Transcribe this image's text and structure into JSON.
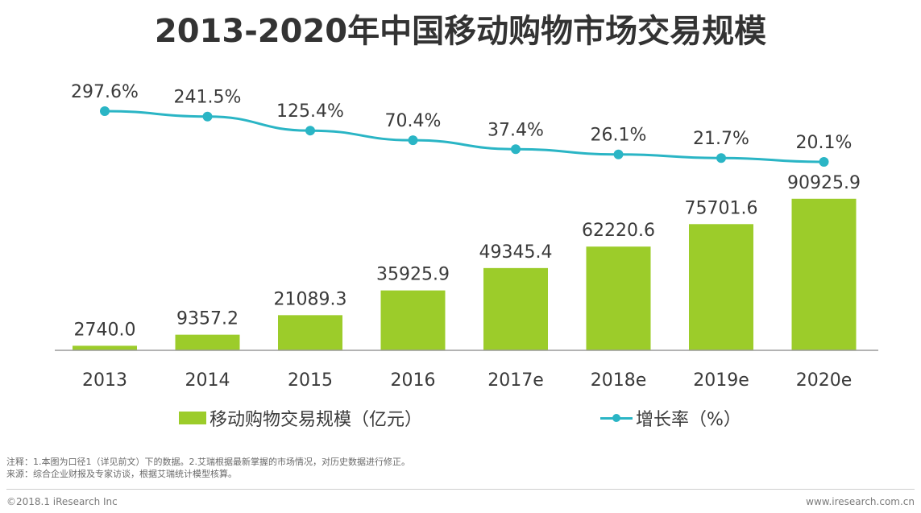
{
  "title": "2013-2020年中国移动购物市场交易规模",
  "chart_data": {
    "type": "bar+line",
    "title": "2013-2020年中国移动购物市场交易规模",
    "categories": [
      "2013",
      "2014",
      "2015",
      "2016",
      "2017e",
      "2018e",
      "2019e",
      "2020e"
    ],
    "series": [
      {
        "name": "移动购物交易规模（亿元）",
        "type": "bar",
        "values": [
          2740.0,
          9357.2,
          21089.3,
          35925.9,
          49345.4,
          62220.6,
          75701.6,
          90925.9
        ],
        "labels": [
          "2740.0",
          "9357.2",
          "21089.3",
          "35925.9",
          "49345.4",
          "62220.6",
          "75701.6",
          "90925.9"
        ]
      },
      {
        "name": "增长率（%）",
        "type": "line",
        "values": [
          297.6,
          241.5,
          125.4,
          70.4,
          37.4,
          26.1,
          21.7,
          20.1
        ],
        "labels": [
          "297.6%",
          "241.5%",
          "125.4%",
          "70.4%",
          "37.4%",
          "26.1%",
          "21.7%",
          "20.1%"
        ]
      }
    ],
    "colors": {
      "bar": "#9ccc2a",
      "line": "#2ab5c5",
      "axis": "#9a9a9a"
    }
  },
  "legend": {
    "bar_label": "移动购物交易规模（亿元）",
    "line_label": "增长率（%）"
  },
  "notes": {
    "line1": "注释：1.本图为口径1（详见前文）下的数据。2.艾瑞根据最新掌握的市场情况，对历史数据进行修正。",
    "line2": "来源：综合企业财报及专家访谈，根据艾瑞统计模型核算。"
  },
  "footer": {
    "copyright": "©2018.1 iResearch Inc",
    "website": "www.iresearch.com.cn"
  }
}
